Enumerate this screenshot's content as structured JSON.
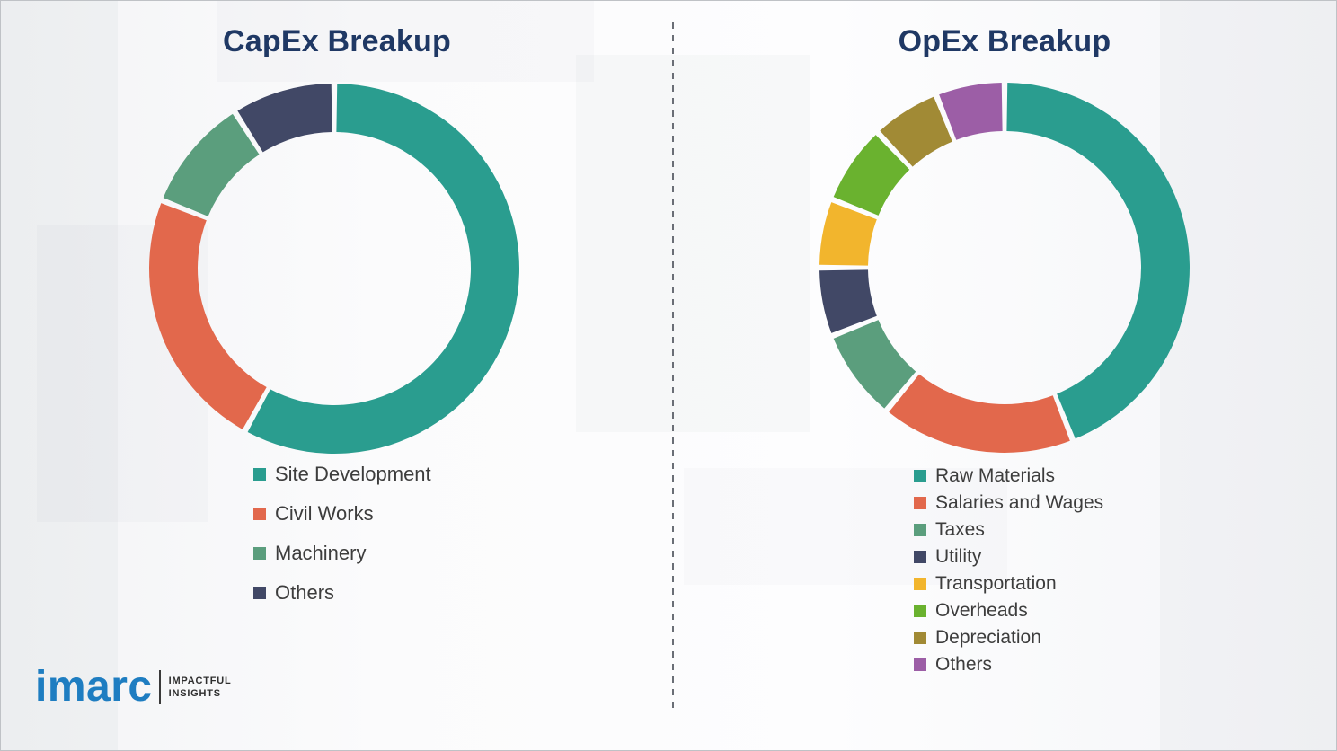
{
  "chart_data": [
    {
      "type": "pie",
      "donut": true,
      "title": "CapEx Breakup",
      "categories": [
        "Site Development",
        "Civil Works",
        "Machinery",
        "Others"
      ],
      "values": [
        58,
        23,
        10,
        9
      ],
      "colors": [
        "#2a9d8f",
        "#e2684c",
        "#5b9e7d",
        "#414866"
      ],
      "legend_position": "bottom-left",
      "start_angle_deg": 0,
      "direction": "clockwise"
    },
    {
      "type": "pie",
      "donut": true,
      "title": "OpEx Breakup",
      "categories": [
        "Raw Materials",
        "Salaries and Wages",
        "Taxes",
        "Utility",
        "Transportation",
        "Overheads",
        "Depreciation",
        "Others"
      ],
      "values": [
        44,
        17,
        8,
        6,
        6,
        7,
        6,
        6
      ],
      "colors": [
        "#2a9d8f",
        "#e2684c",
        "#5b9e7d",
        "#414866",
        "#f2b52d",
        "#6ab22f",
        "#a18a35",
        "#9c5ea6"
      ],
      "legend_position": "bottom-left",
      "start_angle_deg": 0,
      "direction": "clockwise"
    }
  ],
  "branding": {
    "logo_text": "imarc",
    "logo_color": "#1e7dc1",
    "tagline_line1": "IMPACTFUL",
    "tagline_line2": "INSIGHTS"
  }
}
